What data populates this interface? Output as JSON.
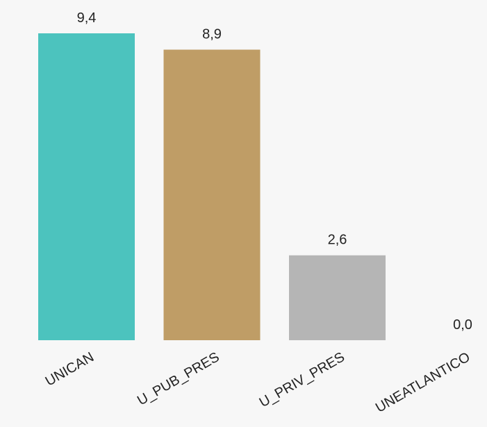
{
  "chart_data": {
    "type": "bar",
    "categories": [
      "UNICAN",
      "U_PUB_PRES",
      "U_PRIV_PRES",
      "UNEATLANTICO"
    ],
    "values": [
      9.4,
      8.9,
      2.6,
      0.0
    ],
    "value_labels": [
      "9,4",
      "8,9",
      "2,6",
      "0,0"
    ],
    "colors": [
      "#4cc3be",
      "#bf9d66",
      "#b5b5b5",
      "#f7f7f7"
    ],
    "title": "",
    "xlabel": "",
    "ylabel": "",
    "ylim": [
      0,
      9.4
    ],
    "grid": false,
    "legend": "none"
  }
}
